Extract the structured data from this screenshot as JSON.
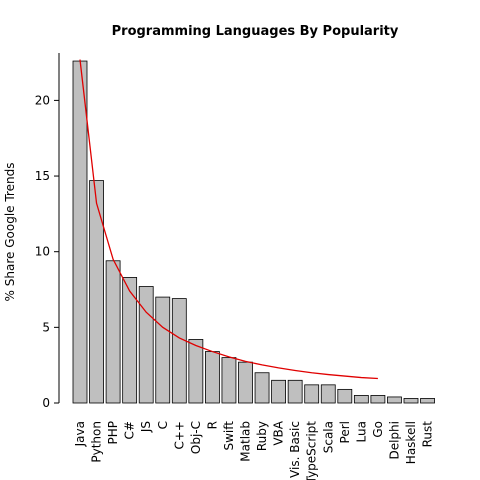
{
  "chart_data": {
    "type": "bar",
    "title": "Programming Languages By Popularity",
    "xlabel": "",
    "ylabel": "% Share Google Trends",
    "categories": [
      "Java",
      "Python",
      "PHP",
      "C#",
      "JS",
      "C",
      "C++",
      "Obj-C",
      "R",
      "Swift",
      "Matlab",
      "Ruby",
      "VBA",
      "Vis. Basic",
      "TypeScript",
      "Scala",
      "Perl",
      "Lua",
      "Go",
      "Delphi",
      "Haskell",
      "Rust"
    ],
    "values": [
      22.6,
      14.7,
      9.4,
      8.3,
      7.7,
      7.0,
      6.9,
      4.2,
      3.4,
      3.0,
      2.7,
      2.0,
      1.5,
      1.5,
      1.2,
      1.2,
      0.9,
      0.5,
      0.5,
      0.4,
      0.3,
      0.3
    ],
    "ylim": [
      0,
      23
    ],
    "yticks": [
      0,
      5,
      10,
      15,
      20
    ],
    "bar_color": "#bfbfbf",
    "bar_edge_color": "#000000",
    "trend": {
      "type": "line",
      "color": "#e00000",
      "x_categories": [
        "Java",
        "Python",
        "PHP",
        "C#",
        "JS",
        "C",
        "C++",
        "Obj-C",
        "R",
        "Swift",
        "Matlab",
        "Ruby",
        "VBA",
        "Vis. Basic",
        "TypeScript",
        "Scala",
        "Perl",
        "Lua",
        "Go"
      ],
      "values": [
        22.7,
        13.2,
        9.5,
        7.4,
        6.0,
        5.0,
        4.3,
        3.8,
        3.4,
        3.05,
        2.75,
        2.52,
        2.32,
        2.15,
        2.0,
        1.88,
        1.78,
        1.68,
        1.62
      ]
    },
    "grid": false,
    "legend": "none"
  }
}
